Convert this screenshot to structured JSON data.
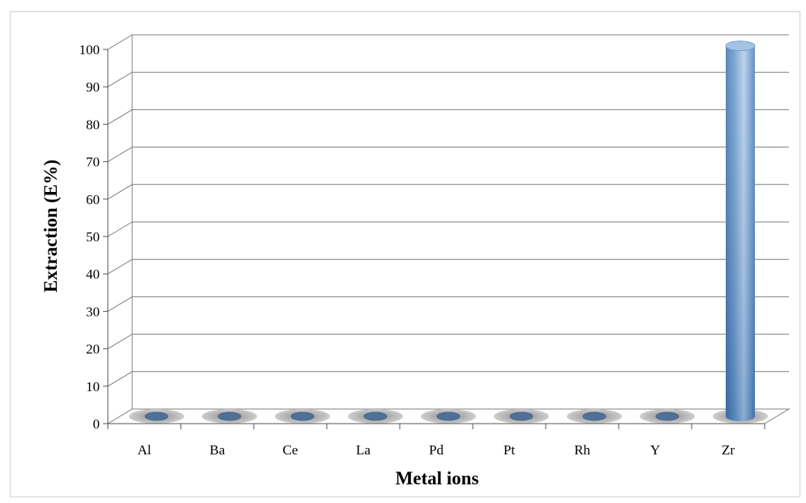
{
  "chart_data": {
    "type": "bar",
    "bar_shape": "cylinder-3d",
    "title": "",
    "xlabel": "Metal ions",
    "ylabel": "Extraction (E%)",
    "categories": [
      "Al",
      "Ba",
      "Ce",
      "La",
      "Pd",
      "Pt",
      "Rh",
      "Y",
      "Zr"
    ],
    "values": [
      0,
      0,
      0,
      0,
      0,
      0,
      0,
      0,
      99
    ],
    "ylim": [
      0,
      100
    ],
    "yticks": [
      0,
      10,
      20,
      30,
      40,
      50,
      60,
      70,
      80,
      90,
      100
    ],
    "grid": true,
    "legend": "none",
    "colors": {
      "bar_light": "#a9c6e6",
      "bar_dark": "#3f73ad",
      "bar_top": "#a3c2e4",
      "floor_cap": "#4f7199",
      "gridline": "#7f7f7f"
    }
  }
}
